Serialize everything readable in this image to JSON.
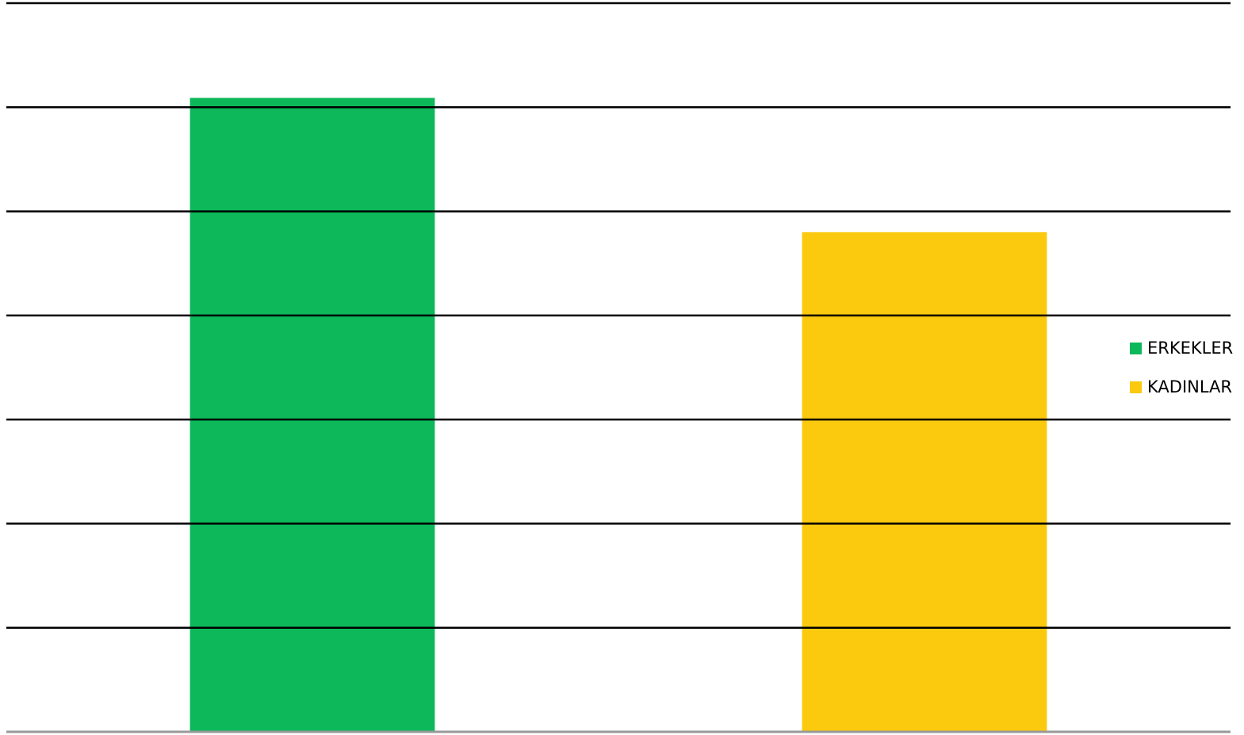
{
  "chart_data": {
    "type": "bar",
    "categories": [
      null
    ],
    "series": [
      {
        "name": "ERKEKLER",
        "color": "#0cb85a",
        "values": [
          6.09
        ]
      },
      {
        "name": "KADINLAR",
        "color": "#fbc90e",
        "values": [
          4.8
        ]
      }
    ],
    "ylim": [
      0,
      7
    ],
    "yticks": [
      0,
      1,
      2,
      3,
      4,
      5,
      6,
      7
    ],
    "grid": true,
    "legend": "right"
  }
}
